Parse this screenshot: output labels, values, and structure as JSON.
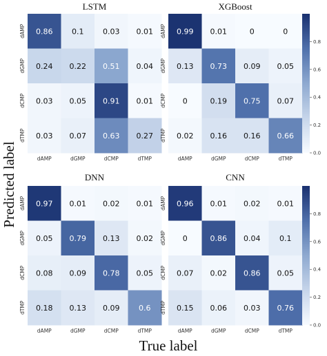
{
  "figure": {
    "xlabel": "True label",
    "ylabel": "Predicted label"
  },
  "colors": {
    "cmap_low": "#f7fbff",
    "cmap_mid": "#7d9cc8",
    "cmap_high": "#19306f",
    "text_dark": "#111111",
    "text_light": "#ffffff"
  },
  "chart_data": [
    {
      "type": "heatmap",
      "title": "LSTM",
      "x_categories": [
        "dAMP",
        "dGMP",
        "dCMP",
        "dTMP"
      ],
      "y_categories": [
        "dAMP",
        "dGMP",
        "dCMP",
        "dTMP"
      ],
      "values": [
        [
          0.86,
          0.1,
          0.03,
          0.01
        ],
        [
          0.24,
          0.22,
          0.51,
          0.04
        ],
        [
          0.03,
          0.05,
          0.91,
          0.01
        ],
        [
          0.03,
          0.07,
          0.63,
          0.27
        ]
      ],
      "labels": [
        [
          "0.86",
          "0.1",
          "0.03",
          "0.01"
        ],
        [
          "0.24",
          "0.22",
          "0.51",
          "0.04"
        ],
        [
          "0.03",
          "0.05",
          "0.91",
          "0.01"
        ],
        [
          "0.03",
          "0.07",
          "0.63",
          "0.27"
        ]
      ],
      "colorbar": false,
      "vmin": 0,
      "vmax": 1
    },
    {
      "type": "heatmap",
      "title": "XGBoost",
      "x_categories": [
        "dAMP",
        "dGMP",
        "dCMP",
        "dTMP"
      ],
      "y_categories": [
        "dAMP",
        "dGMP",
        "dCMP",
        "dTMP"
      ],
      "values": [
        [
          0.99,
          0.01,
          0,
          0
        ],
        [
          0.13,
          0.73,
          0.09,
          0.05
        ],
        [
          0,
          0.19,
          0.75,
          0.07
        ],
        [
          0.02,
          0.16,
          0.16,
          0.66
        ]
      ],
      "labels": [
        [
          "0.99",
          "0.01",
          "0",
          "0"
        ],
        [
          "0.13",
          "0.73",
          "0.09",
          "0.05"
        ],
        [
          "0",
          "0.19",
          "0.75",
          "0.07"
        ],
        [
          "0.02",
          "0.16",
          "0.16",
          "0.66"
        ]
      ],
      "colorbar": true,
      "colorbar_ticks": [
        "0.8",
        "0.6",
        "0.4",
        "0.2",
        "0.0"
      ],
      "vmin": 0,
      "vmax": 1
    },
    {
      "type": "heatmap",
      "title": "DNN",
      "x_categories": [
        "dAMP",
        "dGMP",
        "dCMP",
        "dTMP"
      ],
      "y_categories": [
        "dAMP",
        "dGMP",
        "dCMP",
        "dTMP"
      ],
      "values": [
        [
          0.97,
          0.01,
          0.02,
          0.01
        ],
        [
          0.05,
          0.79,
          0.13,
          0.02
        ],
        [
          0.08,
          0.09,
          0.78,
          0.05
        ],
        [
          0.18,
          0.13,
          0.09,
          0.6
        ]
      ],
      "labels": [
        [
          "0.97",
          "0.01",
          "0.02",
          "0.01"
        ],
        [
          "0.05",
          "0.79",
          "0.13",
          "0.02"
        ],
        [
          "0.08",
          "0.09",
          "0.78",
          "0.05"
        ],
        [
          "0.18",
          "0.13",
          "0.09",
          "0.6"
        ]
      ],
      "colorbar": false,
      "vmin": 0,
      "vmax": 1
    },
    {
      "type": "heatmap",
      "title": "CNN",
      "x_categories": [
        "dAMP",
        "dGMP",
        "dCMP",
        "dTMP"
      ],
      "y_categories": [
        "dAMP",
        "dGMP",
        "dCMP",
        "dTMP"
      ],
      "values": [
        [
          0.96,
          0.01,
          0.02,
          0.01
        ],
        [
          0,
          0.86,
          0.04,
          0.1
        ],
        [
          0.07,
          0.02,
          0.86,
          0.05
        ],
        [
          0.15,
          0.06,
          0.03,
          0.76
        ]
      ],
      "labels": [
        [
          "0.96",
          "0.01",
          "0.02",
          "0.01"
        ],
        [
          "0",
          "0.86",
          "0.04",
          "0.1"
        ],
        [
          "0.07",
          "0.02",
          "0.86",
          "0.05"
        ],
        [
          "0.15",
          "0.06",
          "0.03",
          "0.76"
        ]
      ],
      "colorbar": true,
      "colorbar_ticks": [
        "0.8",
        "0.6",
        "0.4",
        "0.2",
        "0.0"
      ],
      "vmin": 0,
      "vmax": 1
    }
  ]
}
